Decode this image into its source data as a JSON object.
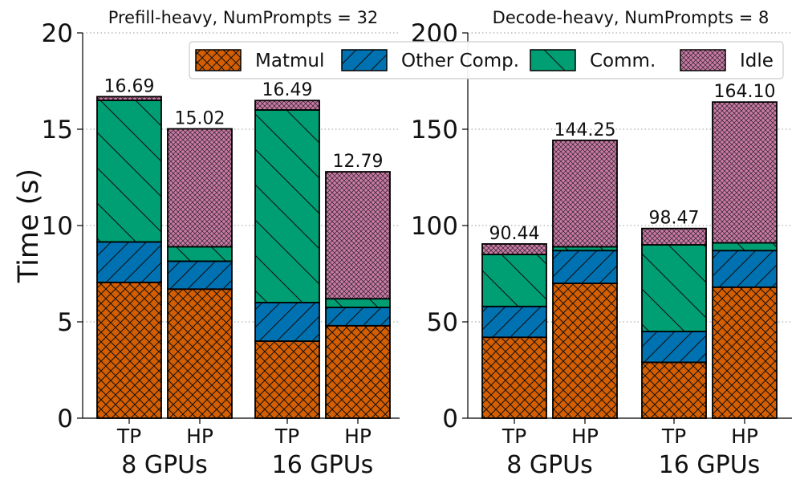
{
  "chart_data": [
    {
      "type": "bar",
      "stacked": true,
      "title": "Prefill-heavy, NumPrompts = 32",
      "ylabel": "Time (s)",
      "ylim": [
        0,
        20
      ],
      "yticks": [
        0,
        5,
        10,
        15,
        20
      ],
      "grid": "horizontal-dotted",
      "groups": [
        {
          "label": "8 GPUs",
          "bars": [
            "TP",
            "HP"
          ]
        },
        {
          "label": "16 GPUs",
          "bars": [
            "TP",
            "HP"
          ]
        }
      ],
      "categories": [
        "TP",
        "HP",
        "TP",
        "HP"
      ],
      "series": [
        {
          "name": "Matmul",
          "values": [
            7.05,
            6.7,
            4.0,
            4.8
          ]
        },
        {
          "name": "Other Comp.",
          "values": [
            2.1,
            1.45,
            2.0,
            0.95
          ]
        },
        {
          "name": "Comm.",
          "values": [
            7.35,
            0.75,
            10.0,
            0.45
          ]
        },
        {
          "name": "Idle",
          "values": [
            0.19,
            6.12,
            0.49,
            6.59
          ]
        }
      ],
      "totals": [
        "16.69",
        "15.02",
        "16.49",
        "12.79"
      ]
    },
    {
      "type": "bar",
      "stacked": true,
      "title": "Decode-heavy, NumPrompts = 8",
      "ylabel": "",
      "ylim": [
        0,
        200
      ],
      "yticks": [
        0,
        50,
        100,
        150,
        200
      ],
      "grid": "horizontal-dotted",
      "groups": [
        {
          "label": "8 GPUs",
          "bars": [
            "TP",
            "HP"
          ]
        },
        {
          "label": "16 GPUs",
          "bars": [
            "TP",
            "HP"
          ]
        }
      ],
      "categories": [
        "TP",
        "HP",
        "TP",
        "HP"
      ],
      "series": [
        {
          "name": "Matmul",
          "values": [
            42,
            70,
            29,
            68
          ]
        },
        {
          "name": "Other Comp.",
          "values": [
            16,
            17,
            16,
            19
          ]
        },
        {
          "name": "Comm.",
          "values": [
            27,
            2,
            45,
            4
          ]
        },
        {
          "name": "Idle",
          "values": [
            5.44,
            55.25,
            8.47,
            73.1
          ]
        }
      ],
      "totals": [
        "90.44",
        "144.25",
        "98.47",
        "164.10"
      ]
    }
  ],
  "legend": {
    "placement": "top-right",
    "items": [
      {
        "name": "Matmul",
        "color": "#d55e00",
        "pattern": "crosshatch"
      },
      {
        "name": "Other Comp.",
        "color": "#0072b2",
        "pattern": "forward-diagonal"
      },
      {
        "name": "Comm.",
        "color": "#009e73",
        "pattern": "back-diagonal"
      },
      {
        "name": "Idle",
        "color": "#cc79a7",
        "pattern": "fine-crosshatch"
      }
    ]
  }
}
